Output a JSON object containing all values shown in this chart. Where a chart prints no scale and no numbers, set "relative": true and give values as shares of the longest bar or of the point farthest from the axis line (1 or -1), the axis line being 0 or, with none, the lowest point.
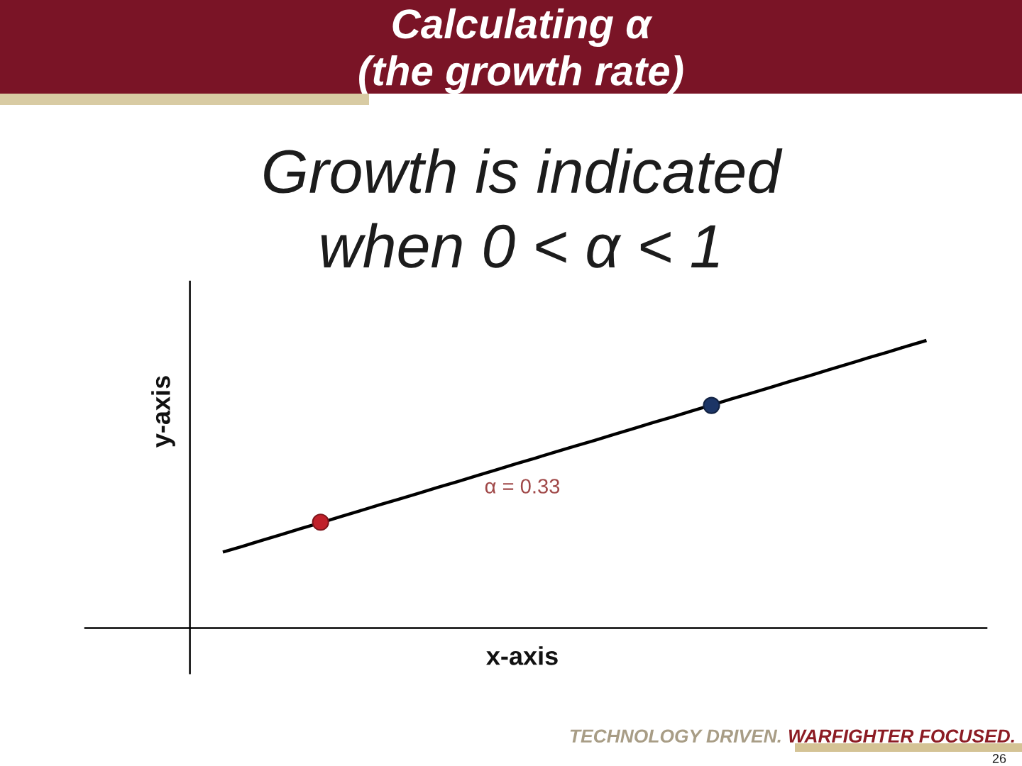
{
  "chart_data": {
    "type": "line",
    "title": "Calculating α\n(the growth rate)",
    "subtitle": "Growth is indicated\nwhen 0 < α < 1",
    "xlabel": "x-axis",
    "ylabel": "y-axis",
    "relative": true,
    "categories": [
      null,
      null,
      null,
      null,
      null,
      null,
      null,
      null,
      null,
      null,
      null,
      null,
      null,
      null,
      null,
      null,
      null,
      null,
      null,
      null,
      null,
      null,
      null,
      null,
      null,
      null,
      null,
      null,
      null,
      null,
      null,
      null,
      null,
      null,
      null,
      null,
      null
    ],
    "series": [
      {
        "color": "#000000",
        "marker": "none",
        "line_style": "solid",
        "values": [
          0.264,
          0.284,
          0.305,
          0.325,
          0.346,
          0.366,
          0.387,
          0.407,
          0.428,
          0.448,
          0.468,
          0.489,
          0.509,
          0.53,
          0.55,
          0.571,
          0.591,
          0.612,
          0.632,
          0.652,
          0.673,
          0.693,
          0.714,
          0.734,
          0.755,
          0.775,
          0.796,
          0.816,
          0.836,
          0.857,
          0.877,
          0.898,
          0.918,
          0.939,
          0.959,
          0.98,
          1.0
        ]
      },
      {
        "color": "#c0202a",
        "marker": "circle",
        "values": [
          null,
          null,
          null,
          null,
          null,
          0.368,
          null,
          null,
          null,
          null,
          null,
          null,
          null,
          null,
          null,
          null,
          null,
          null,
          null,
          null,
          null,
          null,
          null,
          null,
          null,
          null,
          null,
          null,
          null,
          null,
          null,
          null,
          null,
          null,
          null,
          null,
          null
        ]
      },
      {
        "color": "#1c3566",
        "marker": "circle",
        "values": [
          null,
          null,
          null,
          null,
          null,
          null,
          null,
          null,
          null,
          null,
          null,
          null,
          null,
          null,
          null,
          null,
          null,
          null,
          null,
          null,
          null,
          null,
          null,
          null,
          null,
          0.774,
          null,
          null,
          null,
          null,
          null,
          null,
          null,
          null,
          null,
          null,
          null
        ]
      }
    ],
    "annotations": [
      "α = 0.33",
      "TECHNOLOGY DRIVEN.",
      "WARFIGHTER FOCUSED.",
      "26"
    ]
  }
}
